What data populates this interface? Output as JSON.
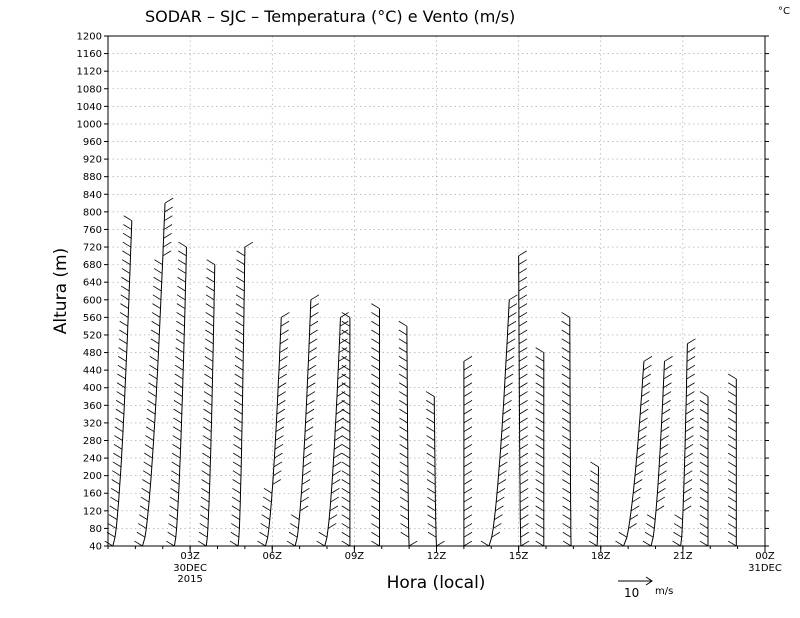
{
  "chart_data": {
    "type": "wind-barb-profile",
    "title": "SODAR – SJC – Temperatura (°C) e Vento (m/s)",
    "corner_unit": "°C",
    "xlabel": "Hora (local)",
    "ylabel": "Altura (m)",
    "ylim": [
      40,
      1200
    ],
    "xlim": [
      0,
      24
    ],
    "y_ticks": [
      40,
      80,
      120,
      160,
      200,
      240,
      280,
      320,
      360,
      400,
      440,
      480,
      520,
      560,
      600,
      640,
      680,
      720,
      760,
      800,
      840,
      880,
      920,
      960,
      1000,
      1040,
      1080,
      1120,
      1160,
      1200
    ],
    "x_ticks": [
      {
        "x": 3,
        "label": "03Z",
        "sub": [
          "30DEC",
          "2015"
        ]
      },
      {
        "x": 6,
        "label": "06Z",
        "sub": []
      },
      {
        "x": 9,
        "label": "09Z",
        "sub": []
      },
      {
        "x": 12,
        "label": "12Z",
        "sub": []
      },
      {
        "x": 15,
        "label": "15Z",
        "sub": []
      },
      {
        "x": 18,
        "label": "18Z",
        "sub": []
      },
      {
        "x": 21,
        "label": "21Z",
        "sub": []
      },
      {
        "x": 24,
        "label": "00Z",
        "sub": [
          "31DEC"
        ]
      }
    ],
    "grid": true,
    "reference_vector": {
      "value": 10,
      "unit": "m/s"
    },
    "profiles": [
      {
        "hour": 1.0,
        "top": 780,
        "u0": -5.0,
        "u1": -0.8
      },
      {
        "hour": 2.0,
        "top": 820,
        "u0": -4.5,
        "u1": 0.5
      },
      {
        "hour": 3.0,
        "top": 720,
        "u0": -3.5,
        "u1": -0.8
      },
      {
        "hour": 4.0,
        "top": 680,
        "u0": -2.5,
        "u1": -0.6
      },
      {
        "hour": 5.0,
        "top": 720,
        "u0": -1.5,
        "u1": 0.0
      },
      {
        "hour": 6.0,
        "top": 560,
        "u0": -1.5,
        "u1": 2.0
      },
      {
        "hour": 7.0,
        "top": 600,
        "u0": -1.0,
        "u1": 2.5
      },
      {
        "hour": 8.0,
        "top": 560,
        "u0": -0.5,
        "u1": 3.0
      },
      {
        "hour": 9.0,
        "top": 560,
        "u0": -1.0,
        "u1": -1.0
      },
      {
        "hour": 10.0,
        "top": 580,
        "u0": -0.5,
        "u1": -0.5
      },
      {
        "hour": 11.0,
        "top": 540,
        "u0": 0.0,
        "u1": -0.5
      },
      {
        "hour": 12.0,
        "top": 380,
        "u0": 0.0,
        "u1": -0.5
      },
      {
        "hour": 13.0,
        "top": 460,
        "u0": 0.0,
        "u1": 0.0
      },
      {
        "hour": 14.0,
        "top": 600,
        "u0": -0.5,
        "u1": 4.0
      },
      {
        "hour": 15.0,
        "top": 700,
        "u0": 0.5,
        "u1": 0.0
      },
      {
        "hour": 16.0,
        "top": 480,
        "u0": -0.5,
        "u1": -0.5
      },
      {
        "hour": 17.0,
        "top": 560,
        "u0": -0.5,
        "u1": -0.8
      },
      {
        "hour": 18.0,
        "top": 220,
        "u0": -0.8,
        "u1": -0.5
      },
      {
        "hour": 19.0,
        "top": 460,
        "u0": -1.0,
        "u1": 3.5
      },
      {
        "hour": 20.0,
        "top": 460,
        "u0": -1.0,
        "u1": 2.0
      },
      {
        "hour": 21.0,
        "top": 500,
        "u0": -0.5,
        "u1": 1.0
      },
      {
        "hour": 22.0,
        "top": 380,
        "u0": -0.5,
        "u1": -0.5
      },
      {
        "hour": 23.0,
        "top": 420,
        "u0": -0.3,
        "u1": -0.3
      }
    ]
  }
}
